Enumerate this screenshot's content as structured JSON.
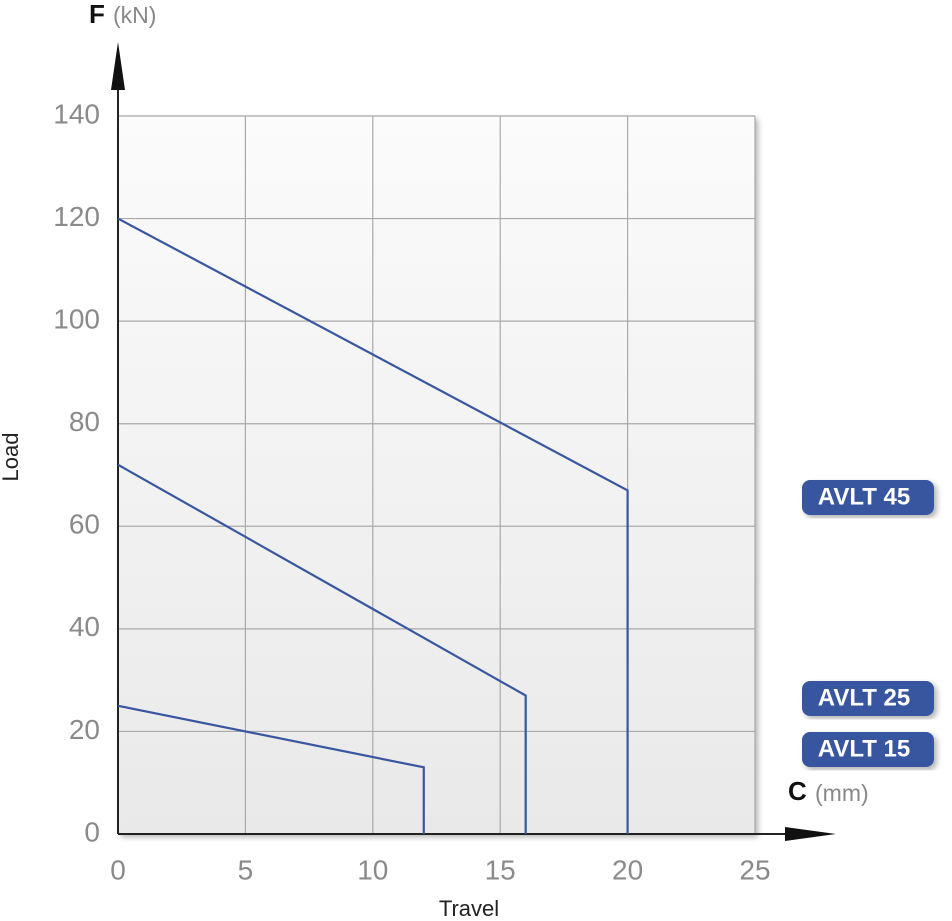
{
  "chart_data": {
    "type": "line",
    "y_axis_symbol": "F",
    "y_axis_unit": "(kN)",
    "y_axis_title": "Load",
    "x_axis_symbol": "C",
    "x_axis_unit": "(mm)",
    "x_axis_title": "Travel",
    "xlim": [
      0,
      25
    ],
    "xticks": [
      0,
      5,
      10,
      15,
      20,
      25
    ],
    "ylim": [
      0,
      140
    ],
    "yticks": [
      0,
      20,
      40,
      60,
      80,
      100,
      120,
      140
    ],
    "grid": true,
    "series": [
      {
        "name": "AVLT 45",
        "color": "#3857a0",
        "x": [
          0,
          20,
          20
        ],
        "values": [
          120,
          67,
          0
        ]
      },
      {
        "name": "AVLT 25",
        "color": "#3857a0",
        "x": [
          0,
          16,
          16
        ],
        "values": [
          72,
          27,
          0
        ]
      },
      {
        "name": "AVLT 15",
        "color": "#3857a0",
        "x": [
          0,
          12,
          12
        ],
        "values": [
          25,
          13,
          0
        ]
      }
    ]
  }
}
